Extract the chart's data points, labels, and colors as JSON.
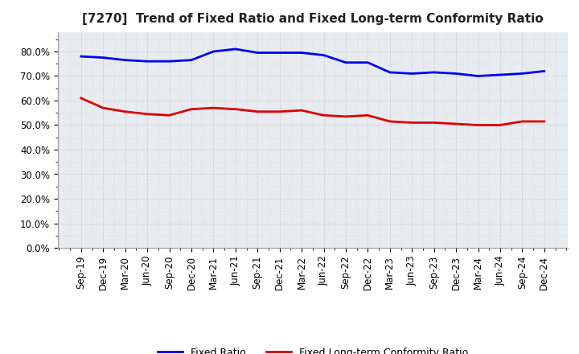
{
  "title": "[7270]  Trend of Fixed Ratio and Fixed Long-term Conformity Ratio",
  "x_labels": [
    "Sep-19",
    "Dec-19",
    "Mar-20",
    "Jun-20",
    "Sep-20",
    "Dec-20",
    "Mar-21",
    "Jun-21",
    "Sep-21",
    "Dec-21",
    "Mar-22",
    "Jun-22",
    "Sep-22",
    "Dec-22",
    "Mar-23",
    "Jun-23",
    "Sep-23",
    "Dec-23",
    "Mar-24",
    "Jun-24",
    "Sep-24",
    "Dec-24"
  ],
  "fixed_ratio": [
    78.0,
    77.5,
    76.5,
    76.0,
    76.0,
    76.5,
    80.0,
    81.0,
    79.5,
    79.5,
    79.5,
    78.5,
    75.5,
    75.5,
    71.5,
    71.0,
    71.5,
    71.0,
    70.0,
    70.5,
    71.0,
    72.0
  ],
  "fixed_lt_ratio": [
    61.0,
    57.0,
    55.5,
    54.5,
    54.0,
    56.5,
    57.0,
    56.5,
    55.5,
    55.5,
    56.0,
    54.0,
    53.5,
    54.0,
    51.5,
    51.0,
    51.0,
    50.5,
    50.0,
    50.0,
    51.5,
    51.5
  ],
  "ylim": [
    0,
    88
  ],
  "yticks": [
    0,
    10,
    20,
    30,
    40,
    50,
    60,
    70,
    80
  ],
  "blue_color": "#0000EE",
  "red_color": "#DD0000",
  "background_color": "#FFFFFF",
  "plot_bg_color": "#E8ECF0",
  "grid_color": "#BBBBCC",
  "title_color": "#222222",
  "legend_fixed_ratio": "Fixed Ratio",
  "legend_fixed_lt_ratio": "Fixed Long-term Conformity Ratio",
  "title_fontsize": 11,
  "line_width": 2.0,
  "tick_fontsize": 8.5
}
